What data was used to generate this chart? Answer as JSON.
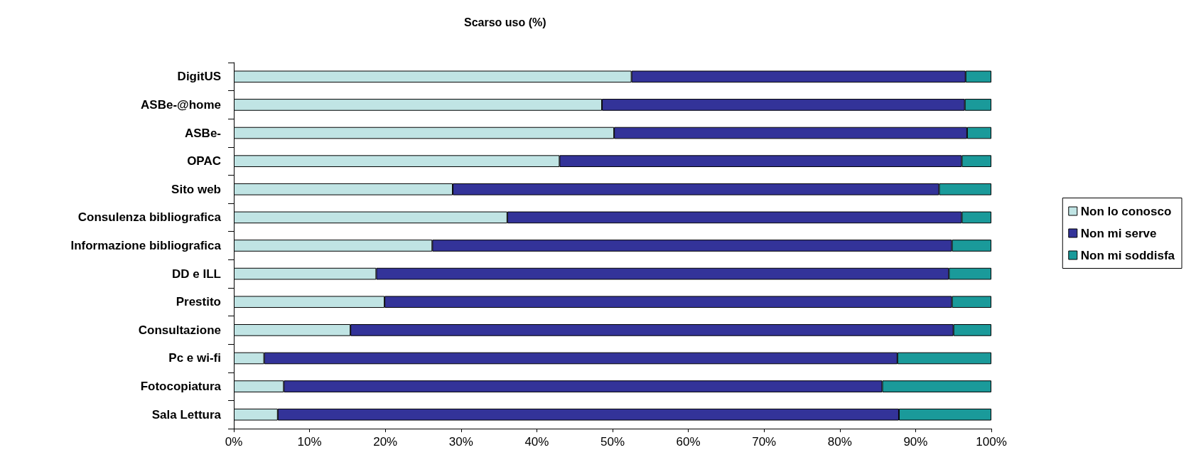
{
  "chart_data": {
    "type": "bar",
    "title": "Scarso uso (%)",
    "orientation": "horizontal",
    "stacked": true,
    "categories": [
      "DigitUS",
      "ASBe-@home",
      "ASBe-",
      "OPAC",
      "Sito web",
      "Consulenza bibliografica",
      "Informazione bibliografica",
      "DD e ILL",
      "Prestito",
      "Consultazione",
      "Pc e wi-fi",
      "Fotocopiatura",
      "Sala Lettura"
    ],
    "series": [
      {
        "name": "Non lo conosco",
        "color": "#c0e4e4",
        "values": [
          52.5,
          48.6,
          50.2,
          43.0,
          28.9,
          36.1,
          26.2,
          18.8,
          19.9,
          15.4,
          4.0,
          6.6,
          5.8
        ]
      },
      {
        "name": "Non mi serve",
        "color": "#333399",
        "values": [
          44.1,
          47.9,
          46.6,
          53.1,
          64.2,
          60.0,
          68.6,
          75.6,
          74.9,
          79.6,
          83.6,
          79.0,
          82.0
        ]
      },
      {
        "name": "Non mi soddisfa",
        "color": "#1a9a9a",
        "values": [
          3.4,
          3.5,
          3.2,
          3.9,
          6.9,
          3.9,
          5.2,
          5.6,
          5.2,
          5.0,
          12.4,
          14.4,
          12.2
        ]
      }
    ],
    "xlim": [
      0,
      100
    ],
    "xticks": [
      {
        "value": 0,
        "label": "0%"
      },
      {
        "value": 10,
        "label": "10%"
      },
      {
        "value": 20,
        "label": "20%"
      },
      {
        "value": 30,
        "label": "30%"
      },
      {
        "value": 40,
        "label": "40%"
      },
      {
        "value": 50,
        "label": "50%"
      },
      {
        "value": 60,
        "label": "60%"
      },
      {
        "value": 70,
        "label": "70%"
      },
      {
        "value": 80,
        "label": "80%"
      },
      {
        "value": 90,
        "label": "90%"
      },
      {
        "value": 100,
        "label": "100%"
      }
    ],
    "grid": false,
    "legend": "right"
  }
}
